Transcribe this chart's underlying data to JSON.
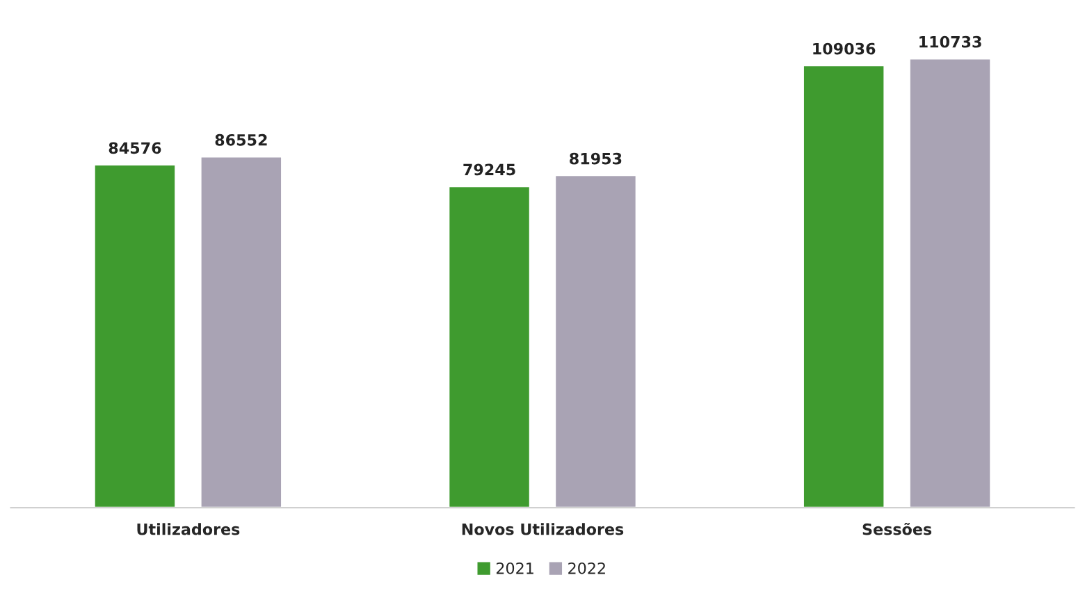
{
  "chart_data": {
    "type": "bar",
    "categories": [
      "Utilizadores",
      "Novos Utilizadores",
      "Sessões"
    ],
    "series": [
      {
        "name": "2021",
        "color": "#3f9b2f",
        "values": [
          84576,
          79245,
          109036
        ]
      },
      {
        "name": "2022",
        "color": "#a9a3b4",
        "values": [
          86552,
          81953,
          110733
        ]
      }
    ],
    "data_labels": true,
    "legend": "bottom",
    "grid": false
  }
}
